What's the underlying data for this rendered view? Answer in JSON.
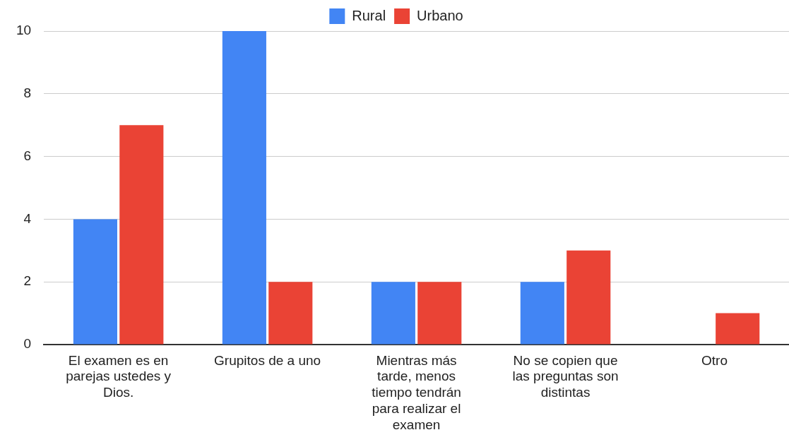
{
  "chart_data": {
    "type": "bar",
    "categories": [
      "El examen es en parejas ustedes y Dios.",
      "Grupitos de a uno",
      "Mientras más tarde, menos tiempo tendrán para realizar el examen",
      "No se copien que las preguntas son distintas",
      "Otro"
    ],
    "series": [
      {
        "name": "Rural",
        "color": "#4285f4",
        "values": [
          4,
          10,
          2,
          2,
          0
        ]
      },
      {
        "name": "Urbano",
        "color": "#ea4335",
        "values": [
          7,
          2,
          2,
          3,
          1
        ]
      }
    ],
    "ylim": [
      0,
      10
    ],
    "yticks": [
      0,
      2,
      4,
      6,
      8,
      10
    ],
    "grid": "y",
    "legend": "top"
  }
}
